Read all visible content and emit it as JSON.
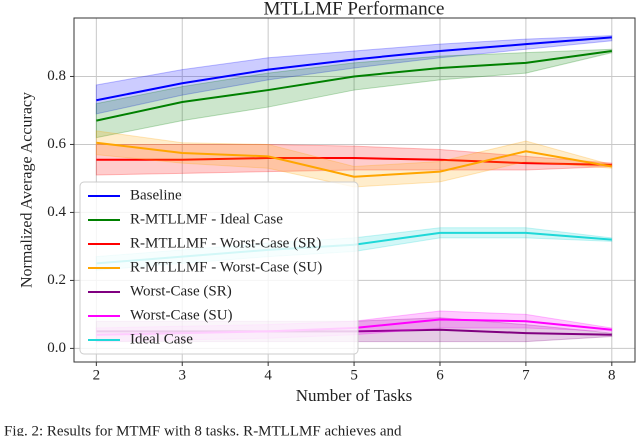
{
  "chart_data": {
    "type": "line",
    "title": "MTLLMF Performance",
    "xlabel": "Number of Tasks",
    "ylabel": "Normalized Average Accuracy",
    "caption": "Fig. 2: Results for MTMF with 8 tasks. R-MTLLMF achieves and",
    "x": [
      2,
      3,
      4,
      5,
      6,
      7,
      8
    ],
    "xlim": [
      1.74,
      8.27
    ],
    "xticks": [
      2,
      3,
      4,
      5,
      6,
      7,
      8
    ],
    "ylim": [
      -0.04,
      0.972
    ],
    "yticks": [
      {
        "value": 0,
        "label": "0.0"
      },
      0.2,
      0.4,
      0.6,
      0.8
    ],
    "grid": true,
    "legend": "lower left",
    "series": [
      {
        "name": "Baseline",
        "color": "#0000ff",
        "values": [
          0.73,
          0.78,
          0.82,
          0.85,
          0.875,
          0.895,
          0.915
        ],
        "lower": [
          0.69,
          0.745,
          0.79,
          0.825,
          0.855,
          0.88,
          0.905
        ],
        "upper": [
          0.775,
          0.82,
          0.855,
          0.875,
          0.895,
          0.91,
          0.92
        ]
      },
      {
        "name": "R-MTLLMF - Ideal Case",
        "color": "#008000",
        "values": [
          0.67,
          0.725,
          0.76,
          0.8,
          0.825,
          0.84,
          0.875
        ],
        "lower": [
          0.62,
          0.67,
          0.71,
          0.76,
          0.79,
          0.81,
          0.87
        ],
        "upper": [
          0.72,
          0.77,
          0.81,
          0.84,
          0.86,
          0.87,
          0.88
        ]
      },
      {
        "name": "R-MTLLMF - Worst-Case (SR)",
        "color": "#ff0000",
        "values": [
          0.555,
          0.555,
          0.56,
          0.56,
          0.555,
          0.545,
          0.54
        ],
        "lower": [
          0.51,
          0.515,
          0.52,
          0.525,
          0.525,
          0.525,
          0.535
        ],
        "upper": [
          0.6,
          0.6,
          0.6,
          0.595,
          0.585,
          0.565,
          0.545
        ]
      },
      {
        "name": "R-MTLLMF - Worst-Case (SU)",
        "color": "#ffa500",
        "values": [
          0.605,
          0.575,
          0.565,
          0.505,
          0.52,
          0.58,
          0.535
        ],
        "lower": [
          0.57,
          0.545,
          0.53,
          0.475,
          0.49,
          0.55,
          0.53
        ],
        "upper": [
          0.64,
          0.605,
          0.6,
          0.535,
          0.55,
          0.61,
          0.54
        ]
      },
      {
        "name": "Worst-Case (SR)",
        "color": "#800080",
        "values": [
          0.05,
          0.05,
          0.05,
          0.05,
          0.055,
          0.045,
          0.04
        ],
        "lower": [
          0.02,
          0.02,
          0.02,
          0.02,
          0.02,
          0.02,
          0.035
        ],
        "upper": [
          0.08,
          0.08,
          0.08,
          0.08,
          0.09,
          0.07,
          0.045
        ]
      },
      {
        "name": "Worst-Case (SU)",
        "color": "#ff00ff",
        "values": [
          0.04,
          0.045,
          0.05,
          0.06,
          0.085,
          0.08,
          0.055
        ],
        "lower": [
          0.02,
          0.025,
          0.03,
          0.04,
          0.06,
          0.06,
          0.05
        ],
        "upper": [
          0.06,
          0.065,
          0.07,
          0.08,
          0.11,
          0.1,
          0.06
        ]
      },
      {
        "name": "Ideal Case",
        "color": "#1fd8d8",
        "values": [
          0.25,
          0.27,
          0.29,
          0.305,
          0.34,
          0.34,
          0.32
        ],
        "lower": [
          0.23,
          0.25,
          0.27,
          0.285,
          0.325,
          0.325,
          0.315
        ],
        "upper": [
          0.27,
          0.29,
          0.31,
          0.325,
          0.355,
          0.355,
          0.325
        ]
      }
    ]
  }
}
